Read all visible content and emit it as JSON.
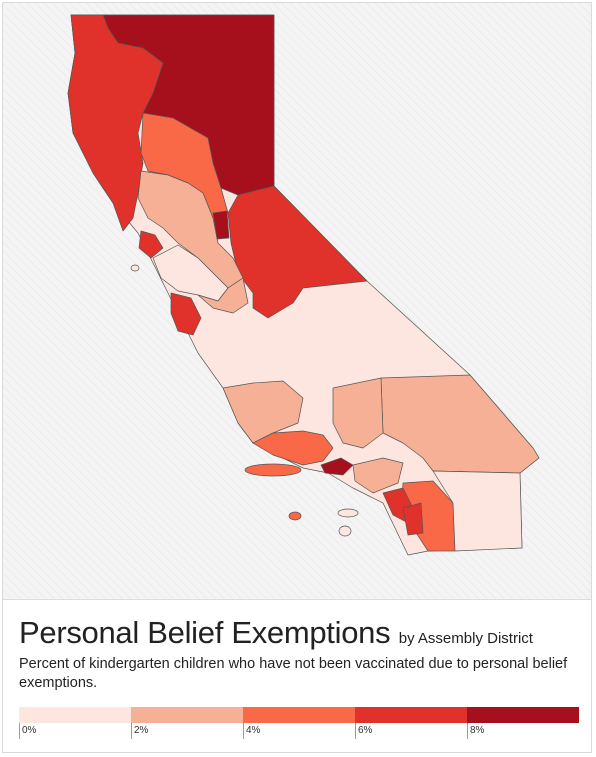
{
  "title": "Personal Belief Exemptions",
  "subtitle": "by Assembly District",
  "description": "Percent of kindergarten children who have not been vaccinated due to personal belief exemptions.",
  "legend": {
    "colors": [
      "#fce6df",
      "#f5b096",
      "#f0a587",
      "#f96947",
      "#e0322b",
      "#a60f1c"
    ],
    "tick_labels": [
      "0%",
      "2%",
      "4%",
      "6%",
      "8%"
    ]
  },
  "map": {
    "region": "California",
    "districts_by_bin": {
      "bin0_0to2": "lightest",
      "bin5_8plus": "darkest"
    }
  }
}
